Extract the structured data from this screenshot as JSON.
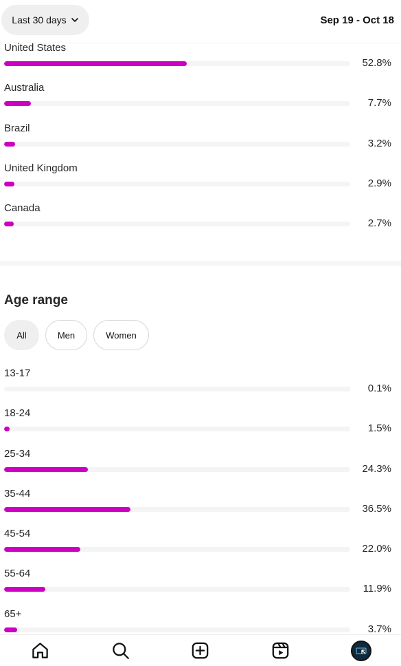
{
  "header": {
    "range_label": "Last 30 days",
    "date_range": "Sep 19 - Oct 18"
  },
  "colors": {
    "bar_fill": "#cc00c0",
    "bar_track": "#f4f4f4"
  },
  "top_locations": [
    {
      "label": "United States",
      "value": "52.8%",
      "percent": 52.8
    },
    {
      "label": "Australia",
      "value": "7.7%",
      "percent": 7.7
    },
    {
      "label": "Brazil",
      "value": "3.2%",
      "percent": 3.2
    },
    {
      "label": "United Kingdom",
      "value": "2.9%",
      "percent": 2.9
    },
    {
      "label": "Canada",
      "value": "2.7%",
      "percent": 2.7
    }
  ],
  "age_range": {
    "title": "Age range",
    "filters": [
      "All",
      "Men",
      "Women"
    ],
    "selected_filter": "All",
    "items": [
      {
        "label": "13-17",
        "value": "0.1%",
        "percent": 0.1
      },
      {
        "label": "18-24",
        "value": "1.5%",
        "percent": 1.5
      },
      {
        "label": "25-34",
        "value": "24.3%",
        "percent": 24.3
      },
      {
        "label": "35-44",
        "value": "36.5%",
        "percent": 36.5
      },
      {
        "label": "45-54",
        "value": "22.0%",
        "percent": 22.0
      },
      {
        "label": "55-64",
        "value": "11.9%",
        "percent": 11.9
      },
      {
        "label": "65+",
        "value": "3.7%",
        "percent": 3.7
      }
    ]
  },
  "bottom_nav": {
    "items": [
      "home-icon",
      "search-icon",
      "create-icon",
      "reels-icon",
      "profile-avatar"
    ]
  }
}
